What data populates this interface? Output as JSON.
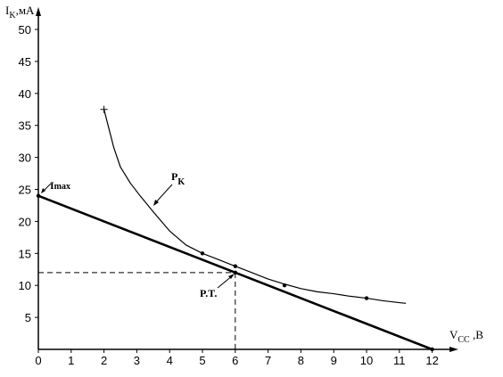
{
  "chart_data": {
    "type": "line",
    "ylabel": {
      "main": "I",
      "sub": "K",
      "rest": ",мА"
    },
    "xlabel": {
      "main": "V",
      "sub": "CC",
      "rest": " ,B"
    },
    "xlim": [
      0,
      12.5
    ],
    "ylim": [
      0,
      52
    ],
    "xticks": [
      0,
      1,
      2,
      3,
      4,
      5,
      6,
      7,
      8,
      9,
      10,
      11,
      12
    ],
    "yticks": [
      5,
      10,
      15,
      20,
      25,
      30,
      35,
      40,
      45,
      50
    ],
    "series": [
      {
        "key": "load_line",
        "x": [
          0,
          12
        ],
        "y": [
          24,
          0
        ]
      },
      {
        "key": "power_curve",
        "x": [
          2.0,
          2.15,
          2.3,
          2.5,
          2.8,
          3.1,
          3.5,
          4.0,
          4.5,
          5.0,
          5.5,
          6.0,
          6.5,
          7.0,
          7.5,
          8.0,
          8.5,
          9.0,
          9.5,
          10.0,
          10.5,
          11.0,
          11.2
        ],
        "y": [
          37.5,
          34.5,
          31.5,
          28.5,
          26.0,
          24.0,
          21.5,
          18.5,
          16.3,
          15.0,
          14.0,
          13.0,
          12.0,
          11.0,
          10.2,
          9.5,
          9.0,
          8.7,
          8.3,
          8.0,
          7.6,
          7.3,
          7.2
        ]
      }
    ],
    "markers": [
      {
        "x": 2.0,
        "y": 37.5,
        "shape": "plus"
      },
      {
        "x": 5.0,
        "y": 15.0,
        "shape": "dot"
      },
      {
        "x": 6.0,
        "y": 13.0,
        "shape": "dot"
      },
      {
        "x": 7.5,
        "y": 10.0,
        "shape": "dot"
      },
      {
        "x": 10.0,
        "y": 8.0,
        "shape": "dot"
      },
      {
        "x": 6.0,
        "y": 12.0,
        "shape": "dot"
      },
      {
        "x": 0,
        "y": 24,
        "shape": "dot"
      },
      {
        "x": 12,
        "y": 0,
        "shape": "dot"
      }
    ],
    "operating_point": {
      "x": 6,
      "y": 12
    },
    "annotations": {
      "imax": {
        "main": "I",
        "sub": "max"
      },
      "pk": {
        "main": "P",
        "sub": "K"
      },
      "pt": "P.T."
    }
  }
}
